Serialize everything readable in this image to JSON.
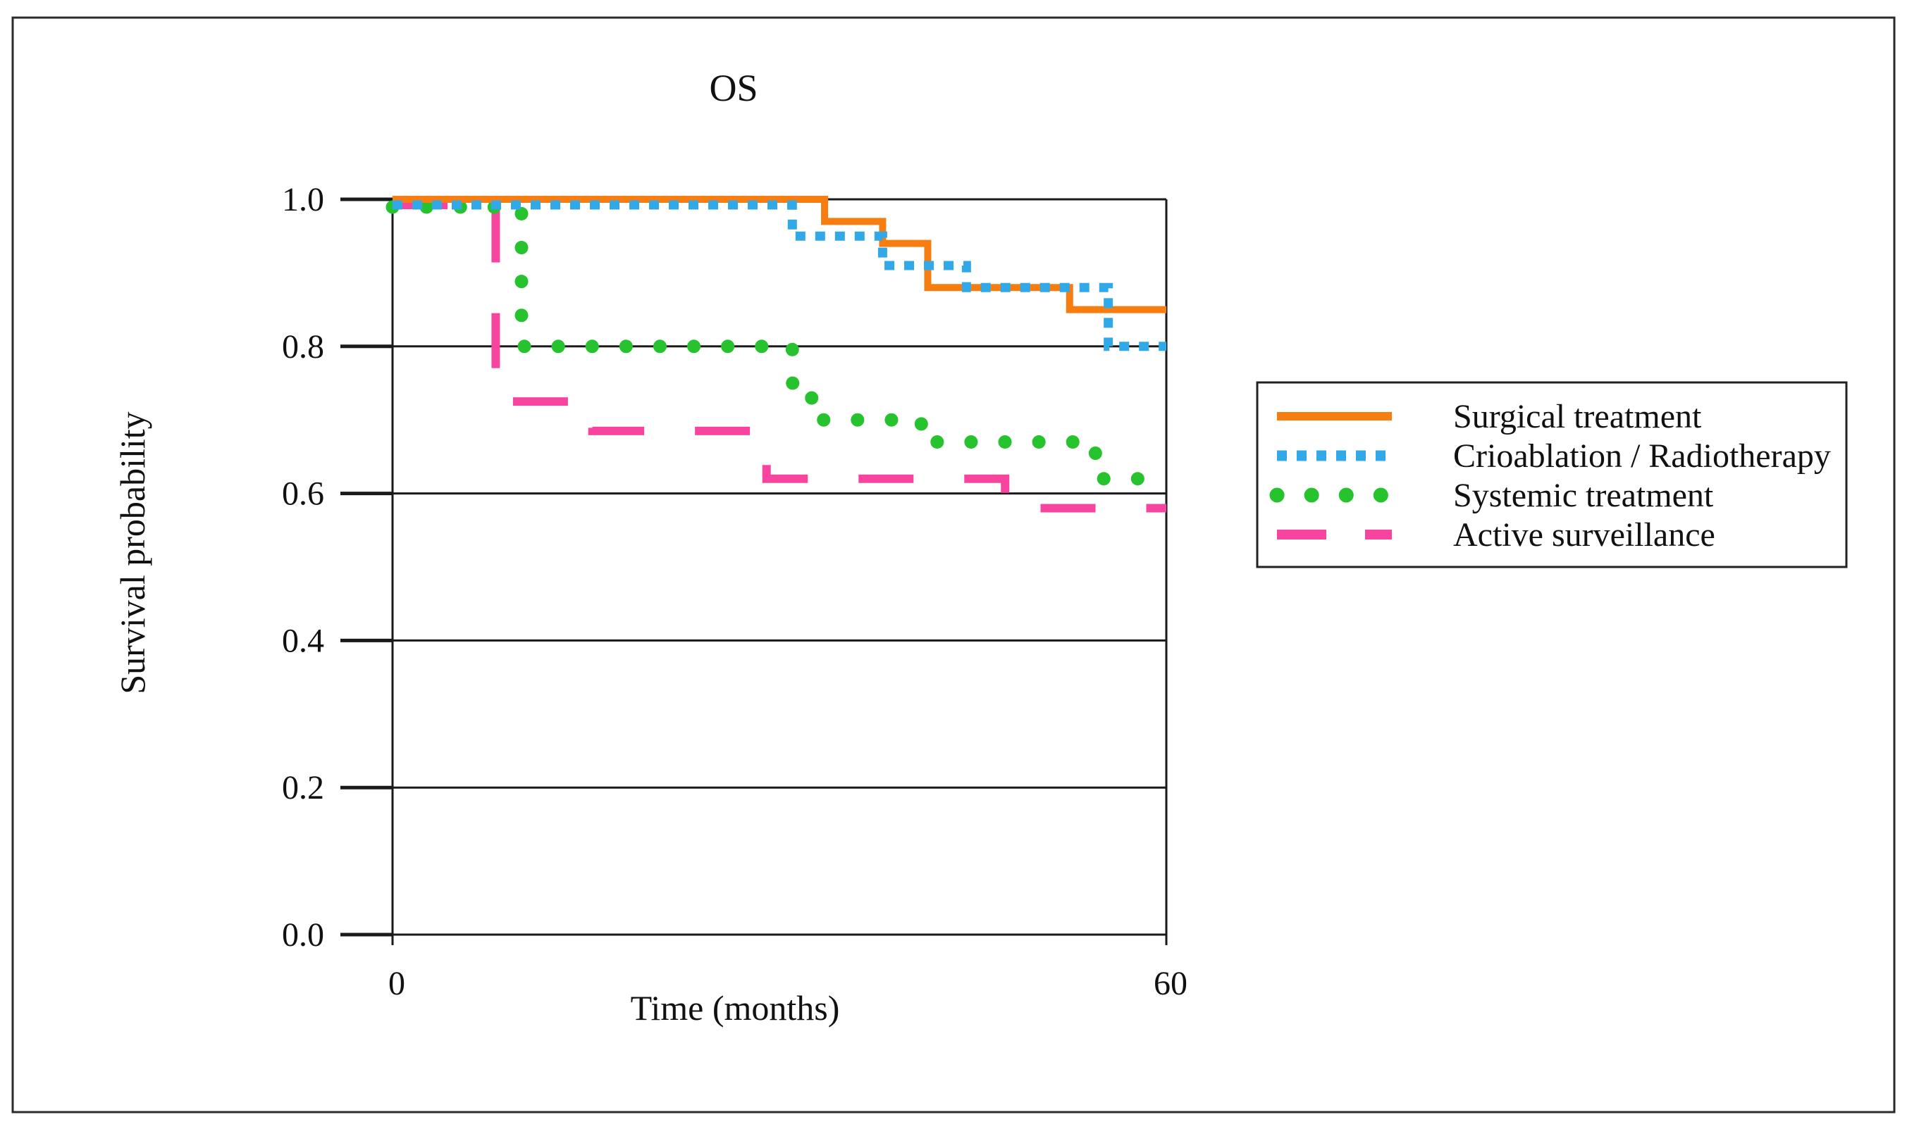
{
  "figure": {
    "background": "#ffffff",
    "border_color": "#2b2b2b"
  },
  "chart_data": {
    "type": "line",
    "subtype": "kaplan-meier-step",
    "title": "OS",
    "xlabel": "Time (months)",
    "ylabel": "Survival probability",
    "xlim": [
      0,
      60
    ],
    "ylim": [
      0.0,
      1.0
    ],
    "grid": "horizontal",
    "xticks": {
      "values": [
        0,
        60
      ],
      "labels": [
        "0",
        "60"
      ]
    },
    "yticks": {
      "values": [
        1.0,
        0.8,
        0.6,
        0.4,
        0.2,
        0.0
      ],
      "labels": [
        "1.0",
        "0.8",
        "0.6",
        "0.4",
        "0.2",
        "0.0"
      ]
    },
    "legend_position": "right",
    "series": [
      {
        "name": "Surgical treatment",
        "color": "#f87d11",
        "style": "solid",
        "start": [
          0,
          1.0
        ],
        "end_time": 60,
        "drops": [
          [
            33.5,
            0.97
          ],
          [
            38,
            0.94
          ],
          [
            41.5,
            0.88
          ],
          [
            52.5,
            0.85
          ]
        ]
      },
      {
        "name": "Crioablation / Radiotherapy",
        "color": "#31a8e8",
        "style": "dotted-square",
        "start": [
          0,
          1.0
        ],
        "end_time": 60,
        "drops": [
          [
            31,
            0.95
          ],
          [
            38,
            0.91
          ],
          [
            44.5,
            0.88
          ],
          [
            55.5,
            0.8
          ]
        ]
      },
      {
        "name": "Systemic treatment",
        "color": "#27c32f",
        "style": "dotted-round",
        "start": [
          0,
          1.0
        ],
        "end_time": 60,
        "drops": [
          [
            10,
            0.8
          ],
          [
            31,
            0.75
          ],
          [
            32.5,
            0.7
          ],
          [
            41,
            0.67
          ],
          [
            54.5,
            0.62
          ]
        ]
      },
      {
        "name": "Active surveillance",
        "color": "#f7459f",
        "style": "dashed",
        "start": [
          0,
          1.0
        ],
        "end_time": 60,
        "drops": [
          [
            8,
            0.725
          ],
          [
            15.5,
            0.685
          ],
          [
            29,
            0.62
          ],
          [
            47.5,
            0.58
          ]
        ]
      }
    ]
  }
}
